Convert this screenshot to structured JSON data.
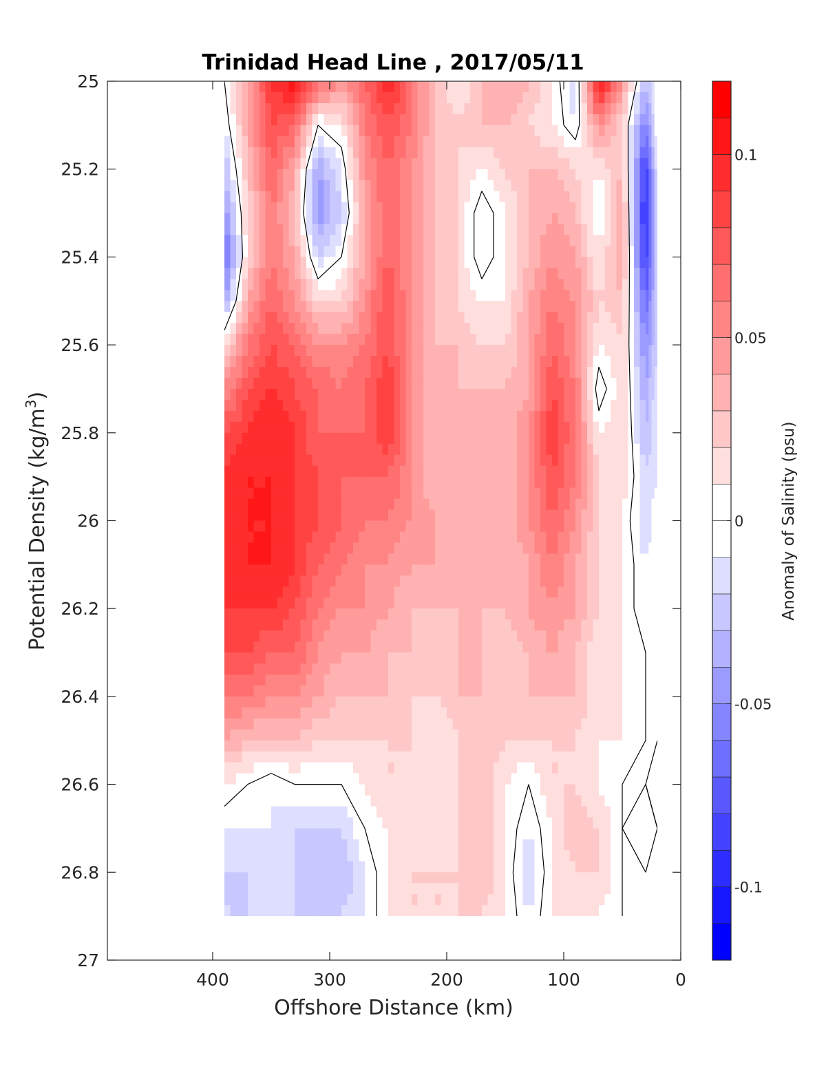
{
  "chart_data": {
    "type": "heatmap",
    "title": "Trinidad Head Line , 2017/05/11",
    "xlabel": "Offshore Distance (km)",
    "ylabel": "Potential Density (kg/m",
    "ylabel_superscript": "3",
    "ylabel_close": ")",
    "colorbar_label": "Anomaly of Salinity (psu)",
    "xlim": [
      490,
      0
    ],
    "ylim": [
      25,
      27
    ],
    "y_reversed": true,
    "x_reversed": true,
    "x_ticks": [
      400,
      300,
      200,
      100,
      0
    ],
    "y_ticks": [
      25,
      25.2,
      25.4,
      25.6,
      25.8,
      26,
      26.2,
      26.4,
      26.6,
      26.8,
      27
    ],
    "y_tick_labels": [
      "25",
      "25.2",
      "25.4",
      "25.6",
      "25.8",
      "26",
      "26.2",
      "26.4",
      "26.6",
      "26.8",
      "27"
    ],
    "colorbar_ticks": [
      -0.1,
      -0.05,
      0,
      0.05,
      0.1
    ],
    "colorbar_tick_labels": [
      "-0.1",
      "-0.05",
      "0",
      "0.05",
      "0.1"
    ],
    "clim": [
      -0.12,
      0.12
    ],
    "colormap": "blue-white-red",
    "levels": 24,
    "zero_contour_color": "#000000",
    "data_extent_x": [
      390,
      20
    ],
    "data_extent_y": [
      25,
      26.9
    ],
    "grid_x": [
      390,
      370,
      350,
      330,
      310,
      290,
      270,
      250,
      230,
      210,
      190,
      170,
      150,
      130,
      110,
      90,
      70,
      50,
      30,
      20
    ],
    "grid_y": [
      25.0,
      25.1,
      25.2,
      25.3,
      25.4,
      25.5,
      25.6,
      25.7,
      25.8,
      25.9,
      26.0,
      26.1,
      26.2,
      26.3,
      26.4,
      26.5,
      26.6,
      26.7,
      26.8,
      26.9
    ],
    "values": [
      [
        0.0,
        0.04,
        0.09,
        0.11,
        0.07,
        0.05,
        0.07,
        0.1,
        0.06,
        0.03,
        0.01,
        0.03,
        0.04,
        0.03,
        0.01,
        -0.02,
        0.11,
        0.05,
        -0.03,
        0.0
      ],
      [
        -0.01,
        0.04,
        0.08,
        0.07,
        0.0,
        0.01,
        0.06,
        0.08,
        0.06,
        0.03,
        0.02,
        0.03,
        0.03,
        0.02,
        0.01,
        -0.01,
        0.05,
        0.02,
        -0.06,
        0.0
      ],
      [
        -0.03,
        0.03,
        0.07,
        0.04,
        -0.04,
        -0.01,
        0.05,
        0.07,
        0.05,
        0.03,
        0.02,
        0.01,
        0.02,
        0.03,
        0.03,
        0.02,
        0.01,
        0.03,
        -0.09,
        -0.01
      ],
      [
        -0.05,
        0.02,
        0.06,
        0.03,
        -0.05,
        -0.02,
        0.04,
        0.07,
        0.05,
        0.03,
        0.02,
        -0.01,
        0.01,
        0.03,
        0.04,
        0.03,
        0.0,
        0.04,
        -0.1,
        -0.02
      ],
      [
        -0.07,
        0.02,
        0.06,
        0.04,
        -0.02,
        0.0,
        0.04,
        0.07,
        0.05,
        0.03,
        0.02,
        -0.01,
        0.01,
        0.03,
        0.05,
        0.04,
        0.01,
        0.04,
        -0.09,
        -0.02
      ],
      [
        -0.04,
        0.04,
        0.07,
        0.05,
        0.02,
        0.02,
        0.05,
        0.08,
        0.05,
        0.03,
        0.02,
        0.01,
        0.01,
        0.04,
        0.06,
        0.05,
        0.02,
        0.03,
        -0.07,
        -0.02
      ],
      [
        0.02,
        0.06,
        0.08,
        0.07,
        0.05,
        0.05,
        0.06,
        0.08,
        0.05,
        0.03,
        0.03,
        0.02,
        0.02,
        0.04,
        0.07,
        0.05,
        0.01,
        0.02,
        -0.05,
        -0.02
      ],
      [
        0.05,
        0.08,
        0.09,
        0.08,
        0.07,
        0.06,
        0.07,
        0.09,
        0.05,
        0.03,
        0.03,
        0.03,
        0.03,
        0.04,
        0.08,
        0.06,
        -0.01,
        0.02,
        -0.04,
        -0.01
      ],
      [
        0.08,
        0.09,
        0.1,
        0.09,
        0.07,
        0.07,
        0.07,
        0.09,
        0.05,
        0.03,
        0.03,
        0.03,
        0.03,
        0.05,
        0.09,
        0.06,
        0.01,
        0.02,
        -0.03,
        -0.01
      ],
      [
        0.09,
        0.1,
        0.1,
        0.09,
        0.08,
        0.07,
        0.07,
        0.07,
        0.05,
        0.03,
        0.03,
        0.03,
        0.03,
        0.05,
        0.08,
        0.06,
        0.02,
        0.02,
        -0.02,
        -0.01
      ],
      [
        0.1,
        0.1,
        0.1,
        0.09,
        0.08,
        0.07,
        0.06,
        0.06,
        0.05,
        0.04,
        0.03,
        0.03,
        0.03,
        0.05,
        0.07,
        0.05,
        0.02,
        0.01,
        -0.02,
        0.0
      ],
      [
        0.09,
        0.1,
        0.1,
        0.09,
        0.07,
        0.06,
        0.05,
        0.05,
        0.04,
        0.04,
        0.03,
        0.03,
        0.03,
        0.04,
        0.06,
        0.04,
        0.02,
        0.01,
        -0.01,
        0.0
      ],
      [
        0.09,
        0.09,
        0.09,
        0.08,
        0.06,
        0.05,
        0.05,
        0.04,
        0.03,
        0.03,
        0.03,
        0.03,
        0.03,
        0.04,
        0.05,
        0.04,
        0.02,
        0.01,
        -0.01,
        0.0
      ],
      [
        0.08,
        0.08,
        0.07,
        0.07,
        0.05,
        0.04,
        0.04,
        0.03,
        0.03,
        0.02,
        0.03,
        0.03,
        0.02,
        0.03,
        0.04,
        0.03,
        0.01,
        0.01,
        0.0,
        0.0
      ],
      [
        0.06,
        0.06,
        0.05,
        0.05,
        0.04,
        0.03,
        0.03,
        0.03,
        0.02,
        0.02,
        0.03,
        0.03,
        0.02,
        0.03,
        0.03,
        0.03,
        0.01,
        0.01,
        0.0,
        0.0
      ],
      [
        0.04,
        0.03,
        0.03,
        0.03,
        0.02,
        0.02,
        0.02,
        0.02,
        0.02,
        0.01,
        0.02,
        0.03,
        0.02,
        0.02,
        0.02,
        0.02,
        0.01,
        0.01,
        0.0,
        0.0
      ],
      [
        0.01,
        0.0,
        -0.01,
        0.0,
        0.0,
        0.0,
        0.01,
        0.02,
        0.02,
        0.01,
        0.02,
        0.03,
        0.01,
        0.0,
        0.02,
        0.02,
        0.01,
        0.0,
        0.0,
        0.01
      ],
      [
        -0.01,
        -0.01,
        -0.01,
        -0.02,
        -0.02,
        -0.02,
        0.0,
        0.01,
        0.02,
        0.01,
        0.02,
        0.03,
        0.01,
        -0.01,
        0.01,
        0.03,
        0.02,
        0.0,
        0.01,
        0.0
      ],
      [
        -0.02,
        -0.02,
        -0.01,
        -0.02,
        -0.03,
        -0.03,
        -0.01,
        0.01,
        0.02,
        0.02,
        0.02,
        0.03,
        0.01,
        -0.02,
        0.01,
        0.02,
        0.02,
        0.0,
        0.0,
        0.0
      ],
      [
        -0.02,
        -0.02,
        -0.01,
        -0.02,
        -0.03,
        -0.02,
        -0.01,
        0.01,
        0.02,
        0.02,
        0.02,
        0.02,
        0.01,
        -0.01,
        0.01,
        0.02,
        0.01,
        0.0,
        0.0,
        0.0
      ]
    ]
  }
}
